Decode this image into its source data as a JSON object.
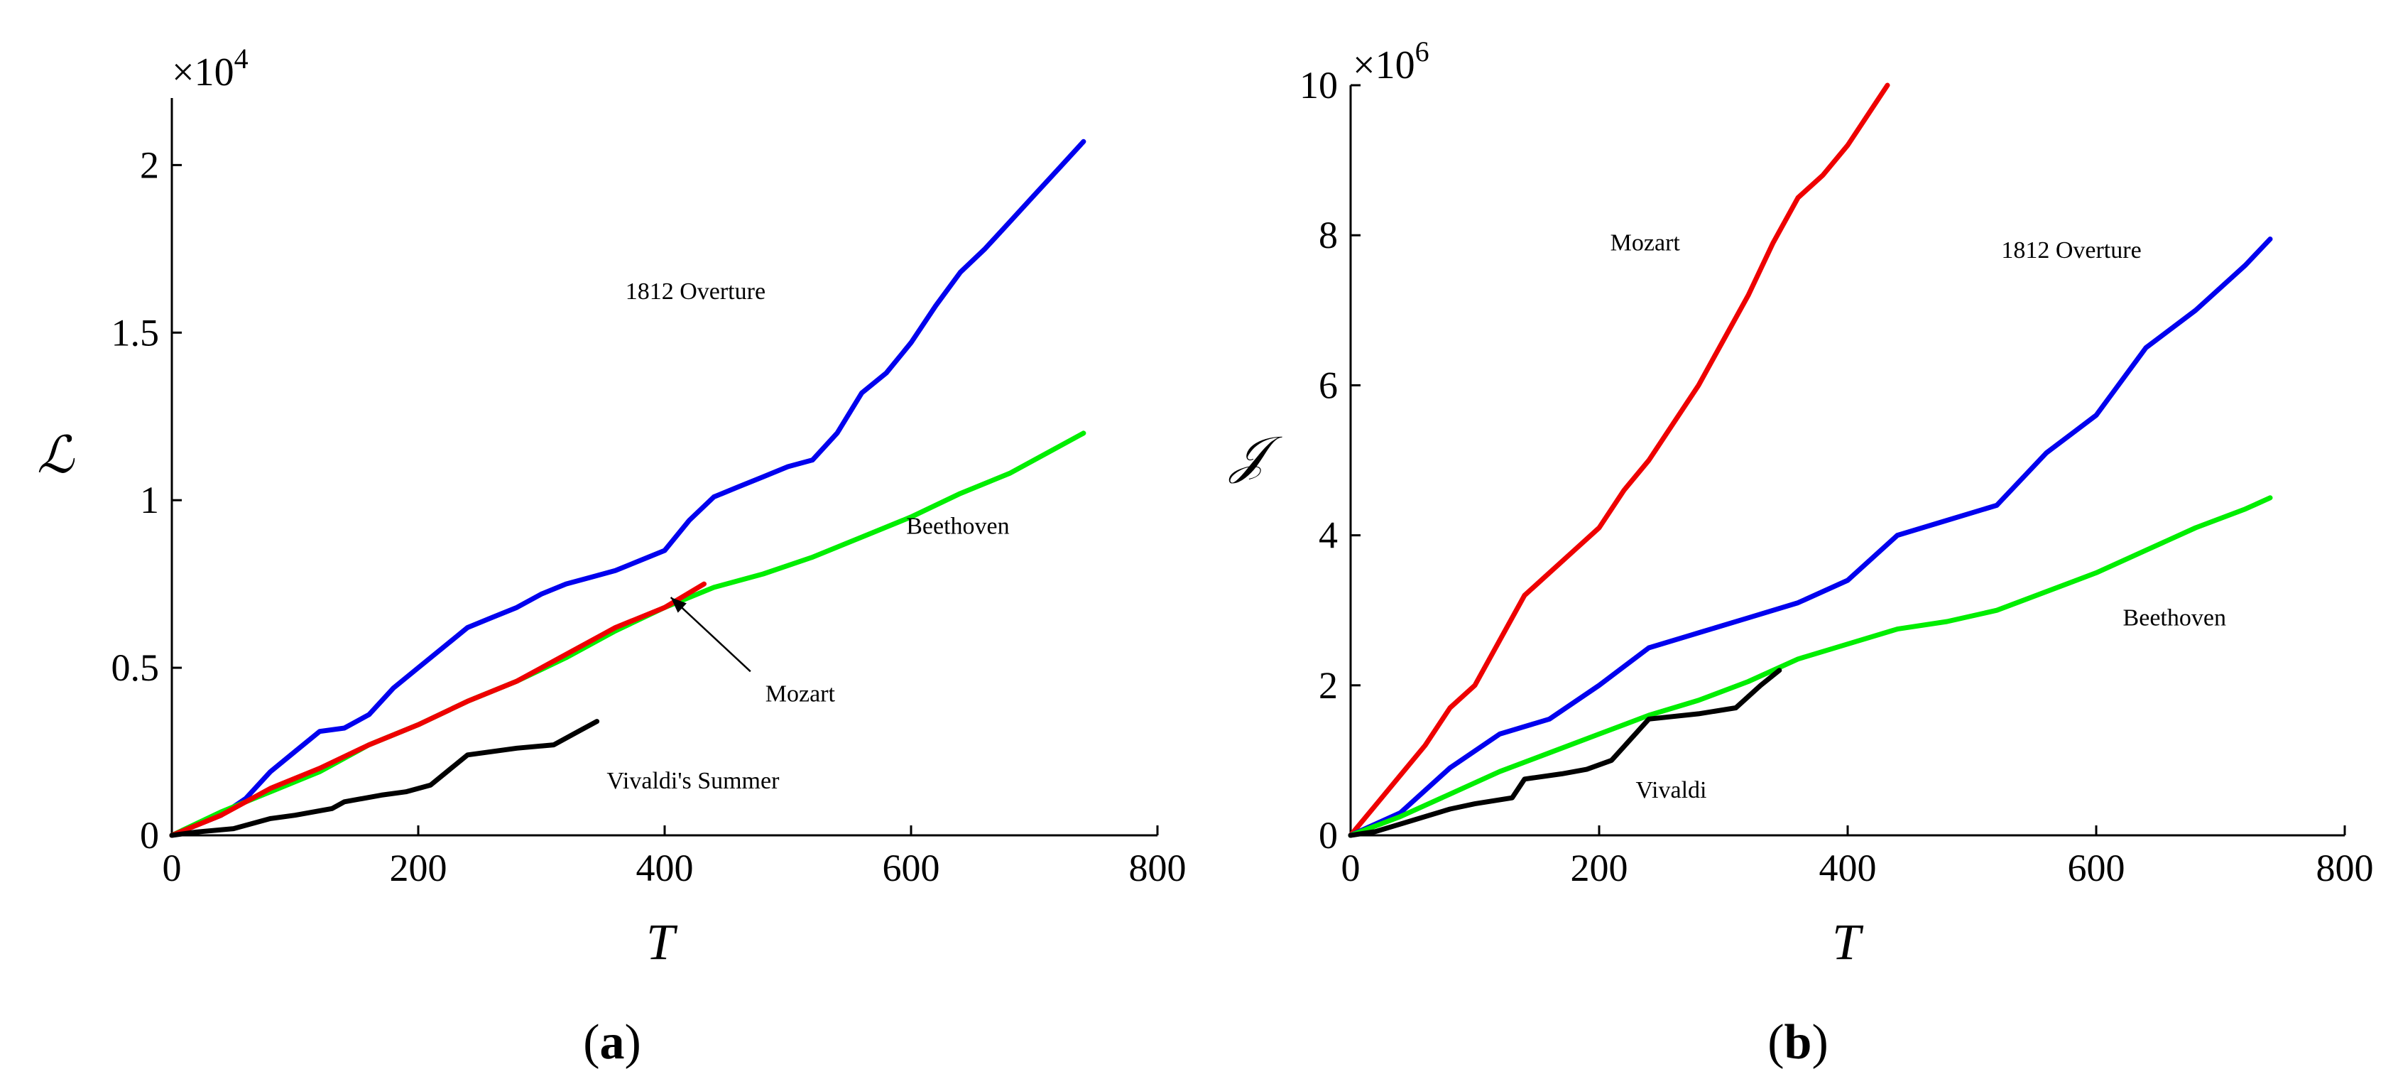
{
  "figure": {
    "panels": [
      {
        "id": "a",
        "caption_letter": "a",
        "multiplier_text": "×10",
        "multiplier_exp": "4",
        "xlabel": "T",
        "ylabel": "ℒ"
      },
      {
        "id": "b",
        "caption_letter": "b",
        "multiplier_text": "×10",
        "multiplier_exp": "6",
        "xlabel": "T",
        "ylabel": "𝒥"
      }
    ]
  },
  "chart_data": [
    {
      "type": "line",
      "title": "",
      "xlabel": "T",
      "ylabel": "ℒ",
      "y_scale_note": "×10^4",
      "xlim": [
        0,
        800
      ],
      "ylim": [
        0,
        2.2
      ],
      "xticks": [
        0,
        200,
        400,
        600,
        800
      ],
      "xtick_labels": [
        "0",
        "200",
        "400",
        "600",
        "800"
      ],
      "yticks": [
        0,
        0.5,
        1,
        1.5,
        2
      ],
      "ytick_labels": [
        "0",
        "0.5",
        "1",
        "1.5",
        "2"
      ],
      "grid": false,
      "series": [
        {
          "name": "1812 Overture",
          "color": "#0000ee",
          "x": [
            0,
            20,
            40,
            60,
            80,
            100,
            120,
            140,
            160,
            180,
            200,
            220,
            240,
            260,
            280,
            300,
            320,
            340,
            360,
            380,
            400,
            420,
            440,
            460,
            480,
            500,
            520,
            540,
            560,
            580,
            600,
            620,
            640,
            660,
            680,
            700,
            720,
            740
          ],
          "values": [
            0,
            0.03,
            0.06,
            0.11,
            0.19,
            0.25,
            0.31,
            0.32,
            0.36,
            0.44,
            0.5,
            0.56,
            0.62,
            0.65,
            0.68,
            0.72,
            0.75,
            0.77,
            0.79,
            0.82,
            0.85,
            0.94,
            1.01,
            1.04,
            1.07,
            1.1,
            1.12,
            1.2,
            1.32,
            1.38,
            1.47,
            1.58,
            1.68,
            1.75,
            1.83,
            1.91,
            1.99,
            2.07
          ]
        },
        {
          "name": "Beethoven",
          "color": "#00ee00",
          "x": [
            0,
            40,
            80,
            120,
            160,
            200,
            240,
            280,
            320,
            360,
            400,
            440,
            480,
            520,
            560,
            600,
            640,
            680,
            720,
            740
          ],
          "values": [
            0,
            0.07,
            0.13,
            0.19,
            0.27,
            0.33,
            0.4,
            0.46,
            0.53,
            0.61,
            0.68,
            0.74,
            0.78,
            0.83,
            0.89,
            0.95,
            1.02,
            1.08,
            1.16,
            1.2
          ]
        },
        {
          "name": "Mozart",
          "color": "#ee0000",
          "x": [
            0,
            40,
            80,
            120,
            160,
            200,
            240,
            280,
            320,
            360,
            400,
            432
          ],
          "values": [
            0,
            0.06,
            0.14,
            0.2,
            0.27,
            0.33,
            0.4,
            0.46,
            0.54,
            0.62,
            0.68,
            0.75
          ]
        },
        {
          "name": "Vivaldi's Summer",
          "color": "#000000",
          "x": [
            0,
            20,
            50,
            80,
            100,
            130,
            140,
            170,
            190,
            210,
            240,
            280,
            310,
            330,
            345
          ],
          "values": [
            0,
            0.01,
            0.02,
            0.05,
            0.06,
            0.08,
            0.1,
            0.12,
            0.13,
            0.15,
            0.24,
            0.26,
            0.27,
            0.31,
            0.34
          ]
        }
      ],
      "annotations": [
        {
          "text": "1812 Overture",
          "x": 425,
          "y": 1.6
        },
        {
          "text": "Beethoven",
          "x": 638,
          "y": 0.9
        },
        {
          "text": "Mozart",
          "x": 510,
          "y": 0.4,
          "arrow_to": {
            "x": 405,
            "y": 0.71
          }
        },
        {
          "text": "Vivaldi's Summer",
          "x": 423,
          "y": 0.14
        }
      ]
    },
    {
      "type": "line",
      "title": "",
      "xlabel": "T",
      "ylabel": "𝒥",
      "y_scale_note": "×10^6",
      "xlim": [
        0,
        800
      ],
      "ylim": [
        0,
        10
      ],
      "xticks": [
        0,
        200,
        400,
        600,
        800
      ],
      "xtick_labels": [
        "0",
        "200",
        "400",
        "600",
        "800"
      ],
      "yticks": [
        0,
        2,
        4,
        6,
        8,
        10
      ],
      "ytick_labels": [
        "0",
        "2",
        "4",
        "6",
        "8",
        "10"
      ],
      "grid": false,
      "series": [
        {
          "name": "Mozart",
          "color": "#ee0000",
          "x": [
            0,
            20,
            40,
            60,
            80,
            100,
            120,
            140,
            160,
            180,
            200,
            220,
            240,
            260,
            280,
            300,
            320,
            340,
            360,
            380,
            400,
            420,
            432
          ],
          "values": [
            0,
            0.4,
            0.8,
            1.2,
            1.7,
            2.0,
            2.6,
            3.2,
            3.5,
            3.8,
            4.1,
            4.6,
            5.0,
            5.5,
            6.0,
            6.6,
            7.2,
            7.9,
            8.5,
            8.8,
            9.2,
            9.7,
            10.0
          ]
        },
        {
          "name": "1812 Overture",
          "color": "#0000ee",
          "x": [
            0,
            40,
            80,
            120,
            160,
            200,
            240,
            280,
            320,
            360,
            400,
            440,
            480,
            520,
            560,
            600,
            640,
            680,
            720,
            740
          ],
          "values": [
            0,
            0.3,
            0.9,
            1.35,
            1.55,
            2.0,
            2.5,
            2.7,
            2.9,
            3.1,
            3.4,
            4.0,
            4.2,
            4.4,
            5.1,
            5.6,
            6.5,
            7.0,
            7.6,
            7.95
          ]
        },
        {
          "name": "Beethoven",
          "color": "#00ee00",
          "x": [
            0,
            40,
            80,
            120,
            160,
            200,
            240,
            280,
            320,
            360,
            400,
            440,
            480,
            520,
            560,
            600,
            640,
            680,
            720,
            740
          ],
          "values": [
            0,
            0.25,
            0.55,
            0.85,
            1.1,
            1.35,
            1.6,
            1.8,
            2.05,
            2.35,
            2.55,
            2.75,
            2.85,
            3.0,
            3.25,
            3.5,
            3.8,
            4.1,
            4.35,
            4.5
          ]
        },
        {
          "name": "Vivaldi",
          "color": "#000000",
          "x": [
            0,
            20,
            50,
            80,
            100,
            130,
            140,
            170,
            190,
            210,
            240,
            280,
            310,
            330,
            345
          ],
          "values": [
            0,
            0.05,
            0.2,
            0.35,
            0.42,
            0.5,
            0.75,
            0.82,
            0.88,
            1.0,
            1.55,
            1.62,
            1.7,
            2.0,
            2.2
          ]
        }
      ],
      "annotations": [
        {
          "text": "Mozart",
          "x": 237,
          "y": 7.8
        },
        {
          "text": "1812 Overture",
          "x": 580,
          "y": 7.7
        },
        {
          "text": "Beethoven",
          "x": 663,
          "y": 2.8
        },
        {
          "text": "Vivaldi",
          "x": 258,
          "y": 0.5
        }
      ]
    }
  ]
}
